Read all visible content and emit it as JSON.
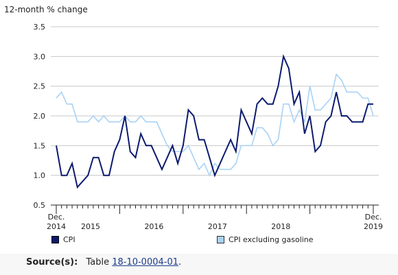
{
  "chart_data": {
    "type": "line",
    "ylabel": "12-month % change",
    "ylim": [
      0.5,
      3.5
    ],
    "yticks": [
      "0.5",
      "1.0",
      "1.5",
      "2.0",
      "2.5",
      "3.0",
      "3.5"
    ],
    "x_tick_labels": [
      {
        "line1": "Dec.",
        "line2": "2014",
        "index": 0
      },
      {
        "line1": "",
        "line2": "2015",
        "index": 6.5
      },
      {
        "line1": "",
        "line2": "2016",
        "index": 18.5
      },
      {
        "line1": "",
        "line2": "2017",
        "index": 30.5
      },
      {
        "line1": "",
        "line2": "2018",
        "index": 42.5
      },
      {
        "line1": "Dec.",
        "line2": "2019",
        "index": 60
      }
    ],
    "x": [
      "Dec. 2014",
      "Jan. 2015",
      "Feb. 2015",
      "Mar. 2015",
      "Apr. 2015",
      "May 2015",
      "Jun. 2015",
      "Jul. 2015",
      "Aug. 2015",
      "Sep. 2015",
      "Oct. 2015",
      "Nov. 2015",
      "Dec. 2015",
      "Jan. 2016",
      "Feb. 2016",
      "Mar. 2016",
      "Apr. 2016",
      "May 2016",
      "Jun. 2016",
      "Jul. 2016",
      "Aug. 2016",
      "Sep. 2016",
      "Oct. 2016",
      "Nov. 2016",
      "Dec. 2016",
      "Jan. 2017",
      "Feb. 2017",
      "Mar. 2017",
      "Apr. 2017",
      "May 2017",
      "Jun. 2017",
      "Jul. 2017",
      "Aug. 2017",
      "Sep. 2017",
      "Oct. 2017",
      "Nov. 2017",
      "Dec. 2017",
      "Jan. 2018",
      "Feb. 2018",
      "Mar. 2018",
      "Apr. 2018",
      "May 2018",
      "Jun. 2018",
      "Jul. 2018",
      "Aug. 2018",
      "Sep. 2018",
      "Oct. 2018",
      "Nov. 2018",
      "Dec. 2018",
      "Jan. 2019",
      "Feb. 2019",
      "Mar. 2019",
      "Apr. 2019",
      "May 2019",
      "Jun. 2019",
      "Jul. 2019",
      "Aug. 2019",
      "Sep. 2019",
      "Oct. 2019",
      "Nov. 2019",
      "Dec. 2019"
    ],
    "series": [
      {
        "name": "CPI",
        "color": "#0c1a6e",
        "values": [
          1.5,
          1.0,
          1.0,
          1.2,
          0.8,
          0.9,
          1.0,
          1.3,
          1.3,
          1.0,
          1.0,
          1.4,
          1.6,
          2.0,
          1.4,
          1.3,
          1.7,
          1.5,
          1.5,
          1.3,
          1.1,
          1.3,
          1.5,
          1.2,
          1.5,
          2.1,
          2.0,
          1.6,
          1.6,
          1.3,
          1.0,
          1.2,
          1.4,
          1.6,
          1.4,
          2.1,
          1.9,
          1.7,
          2.2,
          2.3,
          2.2,
          2.2,
          2.5,
          3.0,
          2.8,
          2.2,
          2.4,
          1.7,
          2.0,
          1.4,
          1.5,
          1.9,
          2.0,
          2.4,
          2.0,
          2.0,
          1.9,
          1.9,
          1.9,
          2.2,
          2.2
        ]
      },
      {
        "name": "CPI excluding gasoline",
        "color": "#a8d2f5",
        "values": [
          2.3,
          2.4,
          2.2,
          2.2,
          1.9,
          1.9,
          1.9,
          2.0,
          1.9,
          2.0,
          1.9,
          1.9,
          1.9,
          2.0,
          1.9,
          1.9,
          2.0,
          1.9,
          1.9,
          1.9,
          1.7,
          1.5,
          1.4,
          1.4,
          1.4,
          1.5,
          1.3,
          1.1,
          1.2,
          1.0,
          1.2,
          1.1,
          1.1,
          1.1,
          1.2,
          1.5,
          1.5,
          1.5,
          1.8,
          1.8,
          1.7,
          1.5,
          1.6,
          2.2,
          2.2,
          1.9,
          2.1,
          1.9,
          2.5,
          2.1,
          2.1,
          2.2,
          2.3,
          2.7,
          2.6,
          2.4,
          2.4,
          2.4,
          2.3,
          2.3,
          2.0
        ]
      }
    ]
  },
  "source": {
    "label": "Source(s):",
    "text": "Table",
    "link": "18-10-0004-01",
    "end": "."
  }
}
